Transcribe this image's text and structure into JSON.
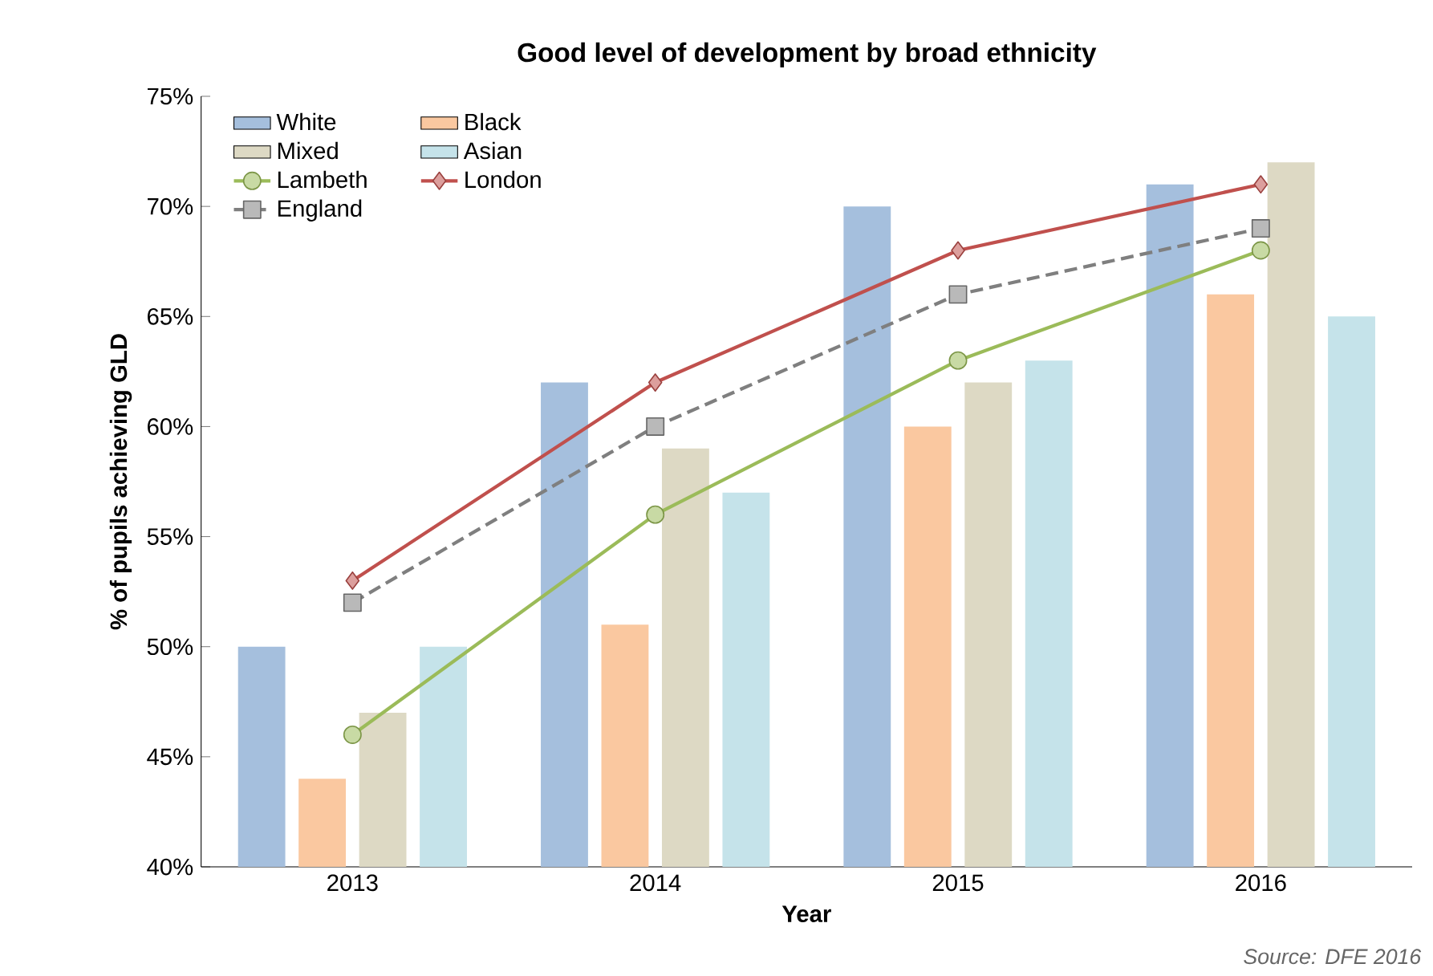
{
  "chart_data": {
    "type": "bar",
    "title": "Good level of development by broad ethnicity",
    "xlabel": "Year",
    "ylabel": "% of pupils achieving GLD",
    "categories": [
      "2013",
      "2014",
      "2015",
      "2016"
    ],
    "series": [
      {
        "name": "White",
        "color": "#a5bfdd",
        "values": [
          50,
          62,
          70,
          71
        ]
      },
      {
        "name": "Black",
        "color": "#fac8a0",
        "values": [
          44,
          51,
          60,
          66
        ]
      },
      {
        "name": "Mixed",
        "color": "#ddd9c4",
        "values": [
          47,
          59,
          62,
          72
        ]
      },
      {
        "name": "Asian",
        "color": "#c5e3ea",
        "values": [
          50,
          57,
          63,
          65
        ]
      },
      {
        "name": "Lambeth",
        "type": "line",
        "color": "#9bbb59",
        "marker": "circle",
        "line_style": "solid",
        "values": [
          46,
          56,
          63,
          68
        ]
      },
      {
        "name": "London",
        "type": "line",
        "color": "#c0504d",
        "marker": "diamond",
        "line_style": "solid",
        "values": [
          53,
          62,
          68,
          71
        ]
      },
      {
        "name": "England",
        "type": "line",
        "color": "#7f7f7f",
        "marker": "square",
        "line_style": "dashed",
        "values": [
          52,
          60,
          66,
          69
        ]
      }
    ],
    "ylim": [
      40,
      75
    ],
    "yticks": [
      {
        "value": 40,
        "label": "40%"
      },
      {
        "value": 45,
        "label": "45%"
      },
      {
        "value": 50,
        "label": "50%"
      },
      {
        "value": 55,
        "label": "55%"
      },
      {
        "value": 60,
        "label": "60%"
      },
      {
        "value": 65,
        "label": "65%"
      },
      {
        "value": 70,
        "label": "70%"
      },
      {
        "value": 75,
        "label": "75%"
      }
    ],
    "legend": "top left",
    "annotations": [
      "Source: DFE 2016"
    ]
  }
}
